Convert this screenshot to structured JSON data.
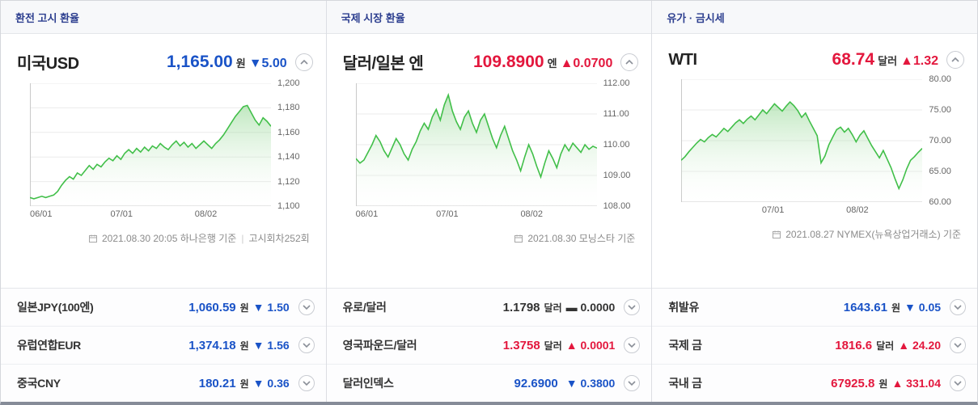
{
  "colors": {
    "up": "#e3173d",
    "down": "#1a53c7",
    "flat": "#333333",
    "line": "#41bf49",
    "fill_top": "#7fd07f"
  },
  "icons": {
    "collapse": "chevron-up",
    "expand": "chevron-down",
    "source": "calendar"
  },
  "panels": [
    {
      "header": "환전 고시 환율",
      "main": {
        "title": "미국USD",
        "price": "1,165.00",
        "unit": "원",
        "change": "▼5.00",
        "direction": "down",
        "source": "2021.08.30 20:05 하나은행 기준",
        "source_separator": "|",
        "source_extra": "고시회차252회"
      },
      "rows": [
        {
          "label": "일본JPY(100엔)",
          "value": "1,060.59",
          "unit": "원",
          "change": "▼ 1.50",
          "direction": "down"
        },
        {
          "label": "유럽연합EUR",
          "value": "1,374.18",
          "unit": "원",
          "change": "▼ 1.56",
          "direction": "down"
        },
        {
          "label": "중국CNY",
          "value": "180.21",
          "unit": "원",
          "change": "▼ 0.36",
          "direction": "down"
        }
      ]
    },
    {
      "header": "국제 시장 환율",
      "main": {
        "title": "달러/일본 엔",
        "price": "109.8900",
        "unit": "엔",
        "change": "▲0.0700",
        "direction": "up",
        "source": "2021.08.30 모닝스타 기준"
      },
      "rows": [
        {
          "label": "유로/달러",
          "value": "1.1798",
          "unit": "달러",
          "change": "▬ 0.0000",
          "direction": "flat"
        },
        {
          "label": "영국파운드/달러",
          "value": "1.3758",
          "unit": "달러",
          "change": "▲ 0.0001",
          "direction": "up"
        },
        {
          "label": "달러인덱스",
          "value": "92.6900",
          "unit": "",
          "change": "▼ 0.3800",
          "direction": "down"
        }
      ]
    },
    {
      "header": "유가 · 금시세",
      "main": {
        "title": "WTI",
        "price": "68.74",
        "unit": "달러",
        "change": "▲1.32",
        "direction": "up",
        "source": "2021.08.27 NYMEX(뉴욕상업거래소) 기준"
      },
      "rows": [
        {
          "label": "휘발유",
          "value": "1643.61",
          "unit": "원",
          "change": "▼ 0.05",
          "direction": "down"
        },
        {
          "label": "국제 금",
          "value": "1816.6",
          "unit": "달러",
          "change": "▲ 24.20",
          "direction": "up"
        },
        {
          "label": "국내 금",
          "value": "67925.8",
          "unit": "원",
          "change": "▲ 331.04",
          "direction": "up"
        }
      ]
    }
  ],
  "chart_data": [
    {
      "type": "area",
      "title": "미국USD 환율 추이 (원)",
      "ylim": [
        1100,
        1200
      ],
      "yticks": [
        {
          "v": 1200,
          "label": "1,200"
        },
        {
          "v": 1180,
          "label": "1,180"
        },
        {
          "v": 1160,
          "label": "1,160"
        },
        {
          "v": 1140,
          "label": "1,140"
        },
        {
          "v": 1120,
          "label": "1,120"
        },
        {
          "v": 1100,
          "label": "1,100"
        }
      ],
      "xticks": [
        {
          "pos": 0,
          "label": "06/01"
        },
        {
          "pos": 0.38,
          "label": "07/01"
        },
        {
          "pos": 0.73,
          "label": "08/02"
        }
      ],
      "values": [
        1107,
        1106,
        1107,
        1108,
        1107,
        1108,
        1109,
        1112,
        1117,
        1121,
        1124,
        1122,
        1127,
        1125,
        1129,
        1133,
        1130,
        1134,
        1132,
        1136,
        1139,
        1137,
        1141,
        1138,
        1143,
        1146,
        1143,
        1147,
        1144,
        1148,
        1145,
        1149,
        1147,
        1151,
        1148,
        1146,
        1150,
        1153,
        1149,
        1152,
        1148,
        1151,
        1147,
        1150,
        1153,
        1150,
        1147,
        1151,
        1154,
        1158,
        1163,
        1168,
        1173,
        1177,
        1181,
        1182,
        1176,
        1170,
        1166,
        1172,
        1169,
        1165
      ]
    },
    {
      "type": "area",
      "title": "달러/일본 엔 환율 추이 (엔)",
      "ylim": [
        108,
        112
      ],
      "yticks": [
        {
          "v": 112,
          "label": "112.00"
        },
        {
          "v": 111,
          "label": "111.00"
        },
        {
          "v": 110,
          "label": "110.00"
        },
        {
          "v": 109,
          "label": "109.00"
        },
        {
          "v": 108,
          "label": "108.00"
        }
      ],
      "xticks": [
        {
          "pos": 0,
          "label": "06/01"
        },
        {
          "pos": 0.38,
          "label": "07/01"
        },
        {
          "pos": 0.73,
          "label": "08/02"
        }
      ],
      "values": [
        109.55,
        109.4,
        109.5,
        109.75,
        110.0,
        110.3,
        110.1,
        109.8,
        109.6,
        109.9,
        110.2,
        110.0,
        109.7,
        109.5,
        109.85,
        110.1,
        110.45,
        110.7,
        110.5,
        110.9,
        111.15,
        110.8,
        111.3,
        111.62,
        111.1,
        110.75,
        110.5,
        110.9,
        111.1,
        110.7,
        110.4,
        110.8,
        111.0,
        110.6,
        110.2,
        109.9,
        110.3,
        110.6,
        110.2,
        109.8,
        109.5,
        109.15,
        109.6,
        110.0,
        109.7,
        109.3,
        108.95,
        109.4,
        109.8,
        109.55,
        109.25,
        109.7,
        110.0,
        109.8,
        110.05,
        109.9,
        109.75,
        110.0,
        109.85,
        109.95,
        109.89
      ]
    },
    {
      "type": "area",
      "title": "WTI 유가 추이 (달러)",
      "ylim": [
        60,
        80
      ],
      "yticks": [
        {
          "v": 80,
          "label": "80.00"
        },
        {
          "v": 75,
          "label": "75.00"
        },
        {
          "v": 70,
          "label": "70.00"
        },
        {
          "v": 65,
          "label": "65.00"
        },
        {
          "v": 60,
          "label": "60.00"
        }
      ],
      "xticks": [
        {
          "pos": 0.38,
          "label": "07/01"
        },
        {
          "pos": 0.73,
          "label": "08/02"
        }
      ],
      "values": [
        66.8,
        67.4,
        68.2,
        68.9,
        69.6,
        70.2,
        69.8,
        70.5,
        71.0,
        70.6,
        71.3,
        72.0,
        71.5,
        72.2,
        72.9,
        73.4,
        72.8,
        73.5,
        74.0,
        73.4,
        74.2,
        75.0,
        74.4,
        75.2,
        76.0,
        75.4,
        74.8,
        75.6,
        76.3,
        75.7,
        74.9,
        73.8,
        74.5,
        73.2,
        72.0,
        70.8,
        66.4,
        67.5,
        69.3,
        70.6,
        71.8,
        72.2,
        71.4,
        72.0,
        71.0,
        69.8,
        70.9,
        71.6,
        70.4,
        69.2,
        68.2,
        67.2,
        68.4,
        67.0,
        65.6,
        63.8,
        62.2,
        63.6,
        65.4,
        66.8,
        67.4,
        68.1,
        68.74
      ]
    }
  ]
}
